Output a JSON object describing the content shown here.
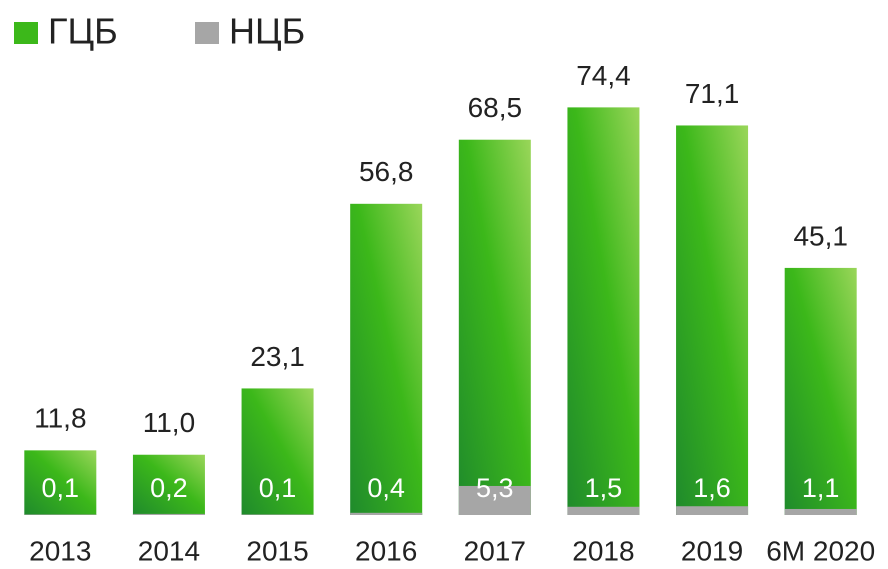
{
  "chart_data": {
    "type": "bar",
    "categories": [
      "2013",
      "2014",
      "2015",
      "2016",
      "2017",
      "2018",
      "2019",
      "6М 2020"
    ],
    "series": [
      {
        "name": "ГЦБ",
        "color": "#3cb81a",
        "values": [
          11.8,
          11.0,
          23.1,
          56.8,
          68.5,
          74.4,
          71.1,
          45.1
        ],
        "value_labels": [
          "11,8",
          "11,0",
          "23,1",
          "56,8",
          "68,5",
          "74,4",
          "71,1",
          "45,1"
        ]
      },
      {
        "name": "НЦБ",
        "color": "#a6a6a6",
        "values": [
          0.1,
          0.2,
          0.1,
          0.4,
          5.3,
          1.5,
          1.6,
          1.1
        ],
        "value_labels": [
          "0,1",
          "0,2",
          "0,1",
          "0,4",
          "5,3",
          "1,5",
          "1,6",
          "1,1"
        ]
      }
    ],
    "ylim": [
      0,
      94
    ],
    "legend": "top-left"
  }
}
